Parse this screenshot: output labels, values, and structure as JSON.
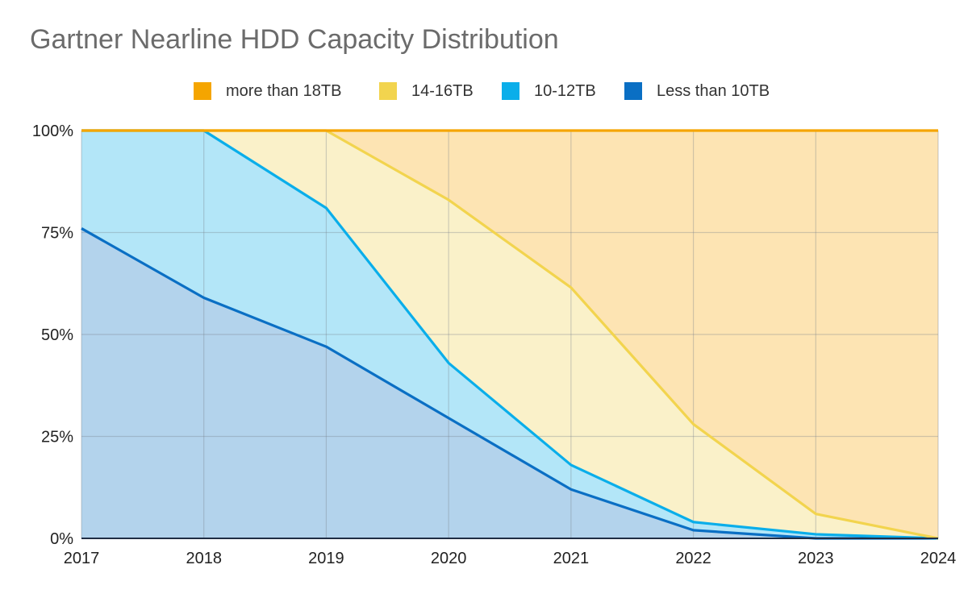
{
  "chart_data": {
    "type": "area",
    "stacked": true,
    "title": "Gartner Nearline HDD Capacity Distribution",
    "x": [
      2017,
      2018,
      2019,
      2020,
      2021,
      2022,
      2023,
      2024
    ],
    "x_tick_labels": [
      "2017",
      "2018",
      "2019",
      "2020",
      "2021",
      "2022",
      "2023",
      "2024"
    ],
    "y_tick_labels": [
      "0%",
      "25%",
      "50%",
      "75%",
      "100%"
    ],
    "y_ticks": [
      0,
      25,
      50,
      75,
      100
    ],
    "ylim": [
      0,
      100
    ],
    "xlabel": "",
    "ylabel": "",
    "grid": true,
    "legend_position": "top-center",
    "series": [
      {
        "name": "Less than 10TB",
        "color": "#0a6fc4",
        "fill": "#b3d3ec",
        "values": [
          76,
          59,
          47,
          29.5,
          12,
          2,
          0,
          0
        ]
      },
      {
        "name": "10-12TB",
        "color": "#0aaeea",
        "fill": "#b3e6f8",
        "values": [
          24,
          41,
          34,
          13.5,
          6,
          2,
          1,
          0
        ]
      },
      {
        "name": "14-16TB",
        "color": "#f2d44e",
        "fill": "#faf1c9",
        "values": [
          0,
          0,
          19,
          40,
          43.5,
          24,
          5,
          0
        ]
      },
      {
        "name": "more than 18TB",
        "color": "#f5a500",
        "fill": "#fde4b3",
        "values": [
          0,
          0,
          0,
          17,
          38.5,
          72,
          94,
          100
        ]
      }
    ],
    "legend_order": [
      "more than 18TB",
      "14-16TB",
      "10-12TB",
      "Less than 10TB"
    ]
  }
}
